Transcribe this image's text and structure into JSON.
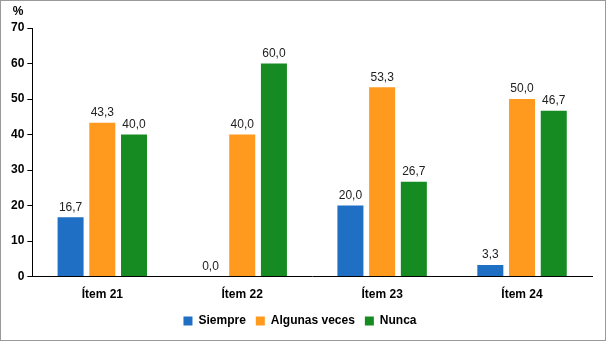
{
  "chart_data": {
    "type": "bar",
    "y_label": "%",
    "categories": [
      "Ítem 21",
      "Ítem 22",
      "Ítem 23",
      "Ítem 24"
    ],
    "series": [
      {
        "name": "Siempre",
        "color": "#1f6fc5",
        "values": [
          16.7,
          0,
          20,
          3.3
        ],
        "value_labels": [
          "16,7",
          "0,0",
          "20,0",
          "3,3"
        ]
      },
      {
        "name": "Algunas veces",
        "color": "#ff9a1f",
        "values": [
          43.3,
          40,
          53.3,
          50
        ],
        "value_labels": [
          "43,3",
          "40,0",
          "53,3",
          "50,0"
        ]
      },
      {
        "name": "Nunca",
        "color": "#168b21",
        "values": [
          40,
          60,
          26.7,
          46.7
        ],
        "value_labels": [
          "40,0",
          "60,0",
          "26,7",
          "46,7"
        ]
      }
    ],
    "ylim": [
      0,
      70
    ],
    "yticks": [
      0,
      10,
      20,
      30,
      40,
      50,
      60,
      70
    ],
    "grid": false,
    "legend": "bottom",
    "data_labels": true
  }
}
